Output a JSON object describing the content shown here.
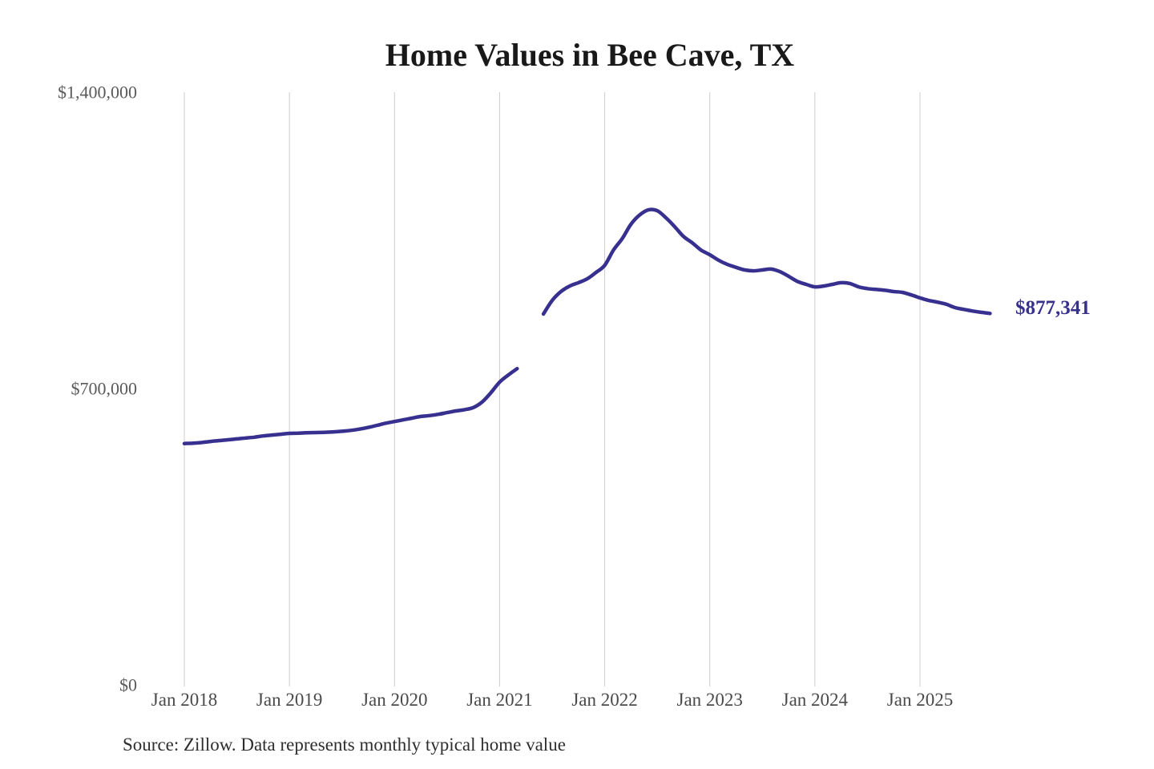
{
  "chart_data": {
    "type": "line",
    "title": "Home Values in Bee Cave, TX",
    "source_note": "Source: Zillow. Data represents monthly typical home value",
    "end_label": "$877,341",
    "line_color": "#38308e",
    "grid_color": "#cccccc",
    "grid": "vertical-only",
    "legend": "none",
    "ylim": [
      0,
      1400000
    ],
    "y_ticks": [
      {
        "value": 0,
        "label": "$0"
      },
      {
        "value": 700000,
        "label": "$700,000"
      },
      {
        "value": 1400000,
        "label": "$1,400,000"
      }
    ],
    "x_unit": "month",
    "x_start_month": "2018-01",
    "x_end_month": "2025-09",
    "x_ticks": [
      {
        "month_index": 0,
        "label": "Jan 2018"
      },
      {
        "month_index": 12,
        "label": "Jan 2019"
      },
      {
        "month_index": 24,
        "label": "Jan 2020"
      },
      {
        "month_index": 36,
        "label": "Jan 2021"
      },
      {
        "month_index": 48,
        "label": "Jan 2022"
      },
      {
        "month_index": 60,
        "label": "Jan 2023"
      },
      {
        "month_index": 72,
        "label": "Jan 2024"
      },
      {
        "month_index": 84,
        "label": "Jan 2025"
      }
    ],
    "gap_note": "null values = visible break in line (Apr-May 2021)",
    "series": [
      {
        "name": "Typical home value",
        "values": [
          570000,
          571000,
          572500,
          575000,
          577000,
          579000,
          581000,
          583000,
          585000,
          588000,
          590000,
          592000,
          594000,
          594500,
          595500,
          596000,
          596500,
          597500,
          599000,
          601000,
          604000,
          608000,
          613000,
          618000,
          622000,
          626000,
          630000,
          634000,
          636000,
          639000,
          643000,
          647000,
          650000,
          655000,
          668000,
          690000,
          715000,
          732000,
          747000,
          null,
          null,
          876000,
          908000,
          929000,
          942000,
          950000,
          959000,
          974000,
          991000,
          1027000,
          1054000,
          1088000,
          1110000,
          1122000,
          1120000,
          1103000,
          1082000,
          1059000,
          1044000,
          1027000,
          1016000,
          1003000,
          993000,
          986000,
          980000,
          978000,
          980000,
          982000,
          976000,
          965000,
          953000,
          946000,
          940000,
          942000,
          946000,
          950000,
          948000,
          940000,
          936000,
          934000,
          932000,
          929000,
          927000,
          921000,
          914000,
          908000,
          904000,
          899000,
          891000,
          887000,
          883000,
          880000,
          877341
        ]
      }
    ],
    "latest_value": 877341
  }
}
